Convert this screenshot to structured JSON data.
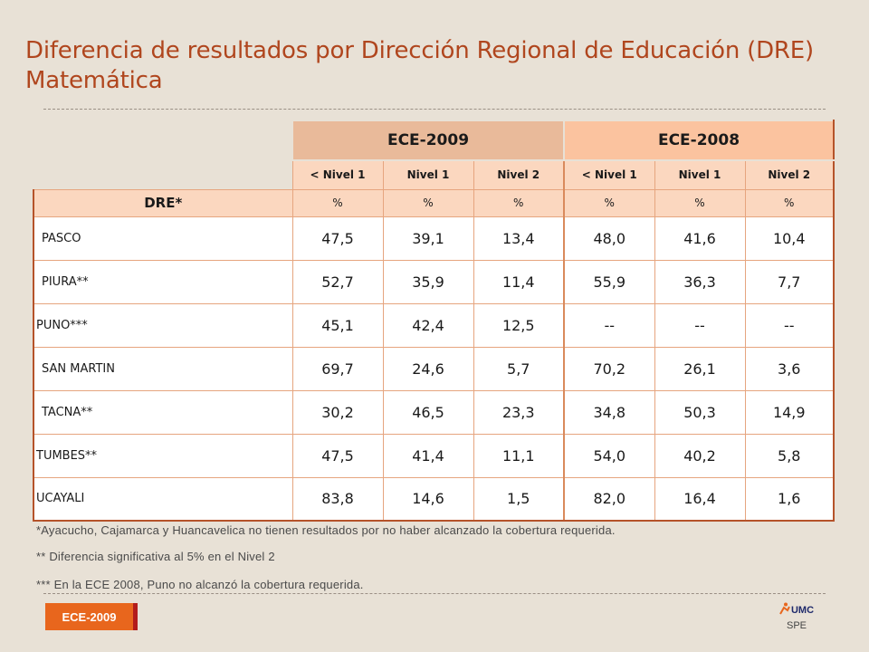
{
  "title": "Diferencia de resultados por Dirección Regional de Educación (DRE) Matemática",
  "table": {
    "years": [
      "ECE-2009",
      "ECE-2008"
    ],
    "levels": [
      "< Nivel 1",
      "Nivel 1",
      "Nivel 2",
      "< Nivel 1",
      "Nivel 1",
      "Nivel 2"
    ],
    "dre_label": "DRE*",
    "unit": "%",
    "rows": [
      {
        "name": "PASCO",
        "values": [
          "47,5",
          "39,1",
          "13,4",
          "48,0",
          "41,6",
          "10,4"
        ]
      },
      {
        "name": "PIURA**",
        "values": [
          "52,7",
          "35,9",
          "11,4",
          "55,9",
          "36,3",
          "7,7"
        ]
      },
      {
        "name": "PUNO***",
        "values": [
          "45,1",
          "42,4",
          "12,5",
          "--",
          "--",
          "--"
        ]
      },
      {
        "name": "SAN MARTIN",
        "values": [
          "69,7",
          "24,6",
          "5,7",
          "70,2",
          "26,1",
          "3,6"
        ]
      },
      {
        "name": "TACNA**",
        "values": [
          "30,2",
          "46,5",
          "23,3",
          "34,8",
          "50,3",
          "14,9"
        ]
      },
      {
        "name": "TUMBES**",
        "values": [
          "47,5",
          "41,4",
          "11,1",
          "54,0",
          "40,2",
          "5,8"
        ]
      },
      {
        "name": "UCAYALI",
        "values": [
          "83,8",
          "14,6",
          "1,5",
          "82,0",
          "16,4",
          "1,6"
        ]
      }
    ]
  },
  "notes": [
    "*Ayacucho, Cajamarca y Huancavelica no tienen resultados por no haber alcanzado la cobertura requerida.",
    "** Diferencia significativa al 5% en el Nivel 2",
    "*** En la ECE 2008, Puno no alcanzó la cobertura requerida."
  ],
  "footer": {
    "badge": "ECE-2009",
    "logo_text": "UMC",
    "logo_sub": "SPE"
  },
  "colors": {
    "title": "#b0461e",
    "header_2009": "#e9ba9a",
    "header_2008": "#fbc39f",
    "subheader": "#fbd7bf",
    "badge": "#e8661d"
  }
}
